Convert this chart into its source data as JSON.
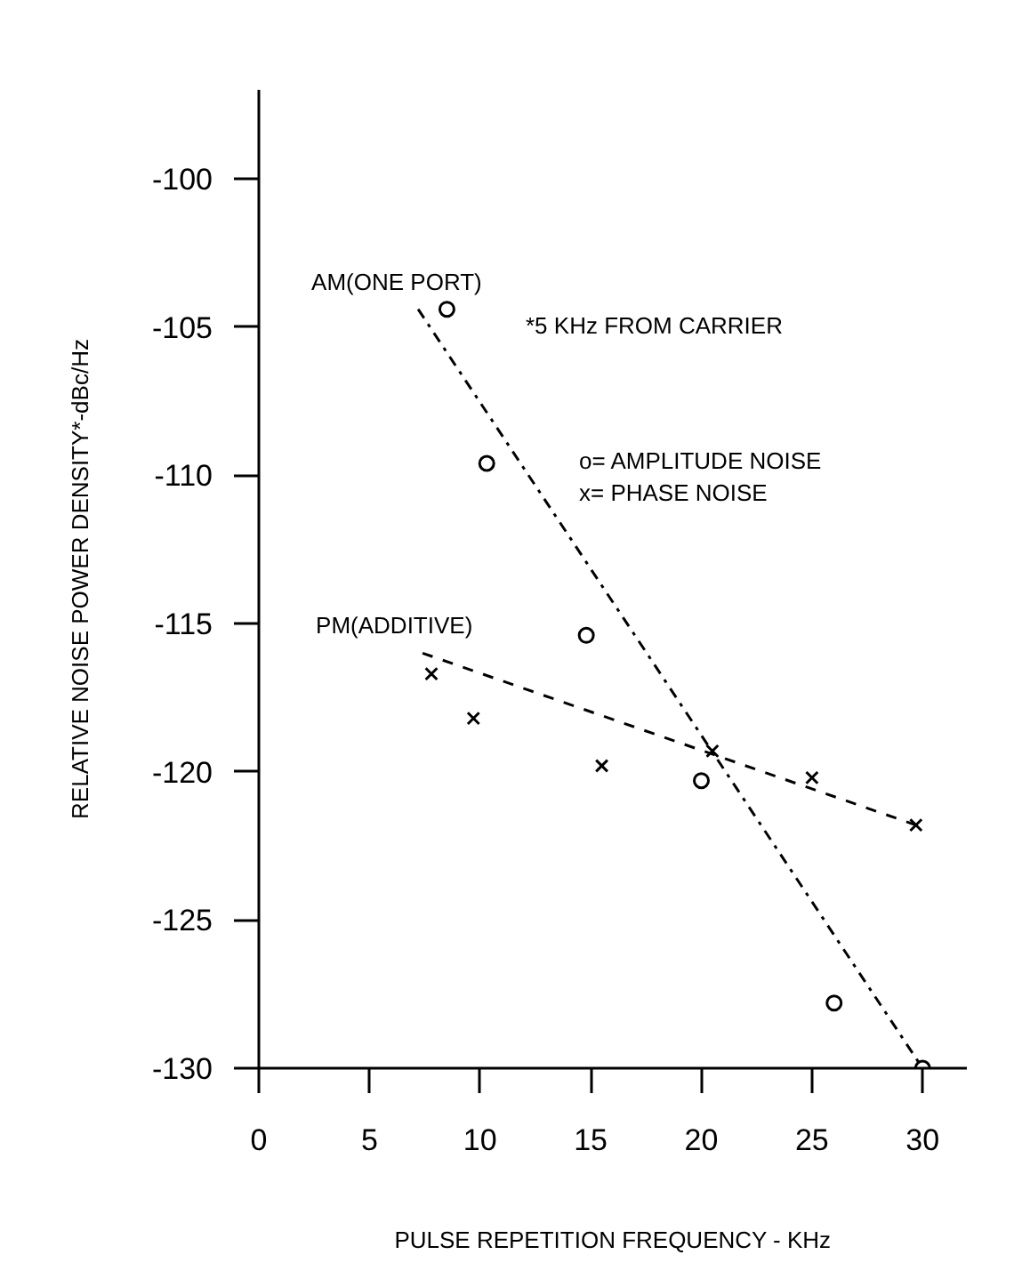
{
  "chart_data": {
    "type": "scatter",
    "xlabel": "PULSE REPETITION FREQUENCY - KHz",
    "ylabel": "RELATIVE NOISE POWER DENSITY*-dBc/Hz",
    "xlim": [
      0,
      32
    ],
    "ylim": [
      -130,
      -97
    ],
    "xticks": [
      0,
      5,
      10,
      15,
      20,
      25,
      30
    ],
    "yticks": [
      -130,
      -125,
      -120,
      -115,
      -110,
      -105,
      -100
    ],
    "grid": false,
    "annotations": [
      "*5 KHz FROM CARRIER",
      "o= AMPLITUDE NOISE",
      "x= PHASE NOISE"
    ],
    "series": [
      {
        "marker": "circle",
        "color": "#000000",
        "x": [
          8.5,
          10.3,
          14.8,
          20.0,
          26.0,
          30.0
        ],
        "values": [
          -104.4,
          -109.6,
          -115.4,
          -120.3,
          -127.8,
          -130.0
        ]
      },
      {
        "marker": "cross",
        "color": "#000000",
        "x": [
          7.8,
          9.7,
          15.5,
          20.5,
          25.0,
          29.7
        ],
        "values": [
          -116.7,
          -118.2,
          -119.8,
          -119.3,
          -120.2,
          -121.8
        ]
      },
      {
        "type": "line",
        "name": "AM(ONE PORT)",
        "line_style": "dashdot",
        "color": "#000000",
        "x": [
          7.2,
          30.0
        ],
        "values": [
          -104.4,
          -130.0
        ]
      },
      {
        "type": "line",
        "name": "PM(ADDITIVE)",
        "line_style": "dashed",
        "color": "#000000",
        "x": [
          7.4,
          29.7
        ],
        "values": [
          -116.0,
          -121.8
        ]
      }
    ]
  }
}
